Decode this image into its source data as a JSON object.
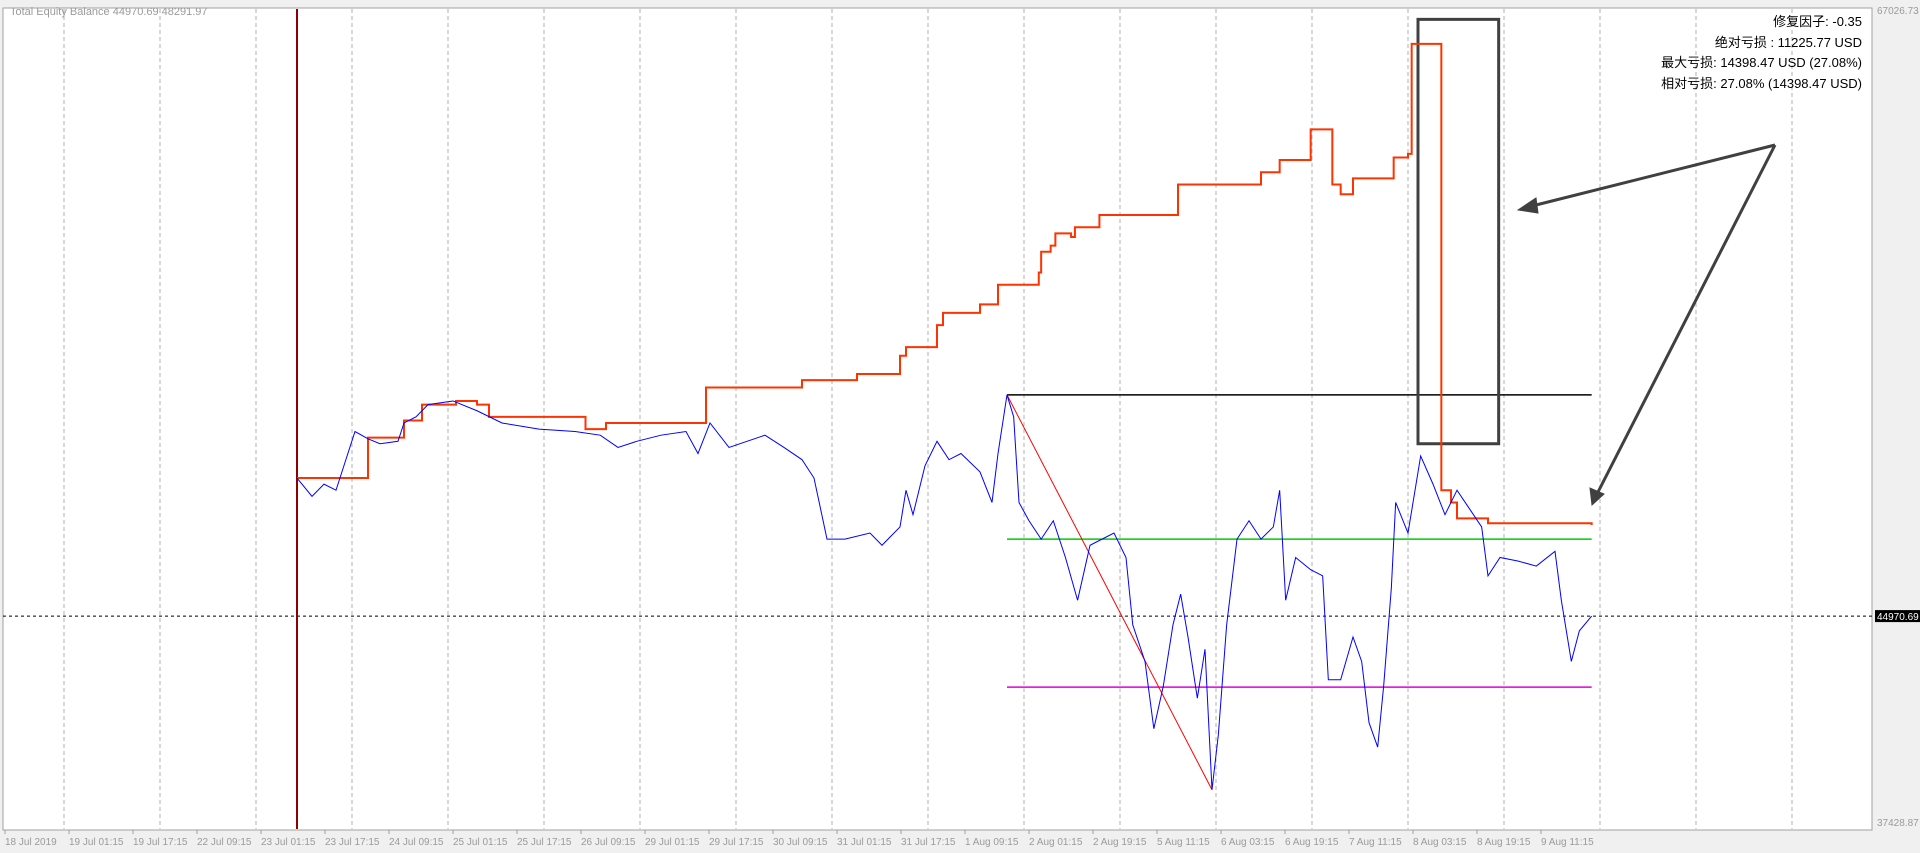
{
  "header": {
    "title": "Total Equity Balance 44970.69 48291.97"
  },
  "info": {
    "lines": [
      "修复因子: -0.35",
      "绝对亏损 : 11225.77 USD",
      "最大亏损: 14398.47 USD (27.08%)",
      "相对亏损: 27.08% (14398.47 USD)"
    ]
  },
  "colors": {
    "equity": "#0000ff",
    "balance": "#ff3300",
    "start_line": "#8b0000",
    "support": "#00cc00",
    "low": "#dd00dd",
    "peak": "#000000",
    "drawdown": "#ff0000",
    "marker": "#404040"
  },
  "chart_data": {
    "type": "line",
    "title": "Total Equity Balance",
    "ylim": [
      37428.87,
      67026.73
    ],
    "y_axis_labels": [
      "67026.73",
      "37428.87"
    ],
    "current_value_label": "44970.69",
    "current_value": 44970.69,
    "grid": "vertical dashed",
    "x_ticks": [
      {
        "label": "18 Jul 2019",
        "time": "2019-07-18 09:15"
      },
      {
        "label": "19 Jul 01:15",
        "time": "2019-07-19 01:15"
      },
      {
        "label": "19 Jul 17:15",
        "time": "2019-07-19 17:15"
      },
      {
        "label": "22 Jul 09:15",
        "time": "2019-07-22 09:15"
      },
      {
        "label": "23 Jul 01:15",
        "time": "2019-07-23 01:15"
      },
      {
        "label": "23 Jul 17:15",
        "time": "2019-07-23 17:15"
      },
      {
        "label": "24 Jul 09:15",
        "time": "2019-07-24 09:15"
      },
      {
        "label": "25 Jul 01:15",
        "time": "2019-07-25 01:15"
      },
      {
        "label": "25 Jul 17:15",
        "time": "2019-07-25 17:15"
      },
      {
        "label": "26 Jul 09:15",
        "time": "2019-07-26 09:15"
      },
      {
        "label": "29 Jul 01:15",
        "time": "2019-07-29 01:15"
      },
      {
        "label": "29 Jul 17:15",
        "time": "2019-07-29 17:15"
      },
      {
        "label": "30 Jul 09:15",
        "time": "2019-07-30 09:15"
      },
      {
        "label": "31 Jul 01:15",
        "time": "2019-07-31 01:15"
      },
      {
        "label": "31 Jul 17:15",
        "time": "2019-07-31 17:15"
      },
      {
        "label": "1 Aug 09:15",
        "time": "2019-08-01 09:15"
      },
      {
        "label": "2 Aug 01:15",
        "time": "2019-08-02 01:15"
      },
      {
        "label": "2 Aug 19:15",
        "time": "2019-08-02 19:15"
      },
      {
        "label": "5 Aug 11:15",
        "time": "2019-08-05 11:15"
      },
      {
        "label": "6 Aug 03:15",
        "time": "2019-08-06 03:15"
      },
      {
        "label": "6 Aug 19:15",
        "time": "2019-08-06 19:15"
      },
      {
        "label": "7 Aug 11:15",
        "time": "2019-08-07 11:15"
      },
      {
        "label": "8 Aug 03:15",
        "time": "2019-08-08 03:15"
      },
      {
        "label": "8 Aug 19:15",
        "time": "2019-08-08 19:15"
      },
      {
        "label": "9 Aug 11:15",
        "time": "2019-08-09 11:15"
      }
    ],
    "series": [
      {
        "name": "Balance",
        "style": "step",
        "points": [
          [
            "2019-07-23 10:15",
            50004
          ],
          [
            "2019-07-24 04:00",
            51475
          ],
          [
            "2019-07-24 13:00",
            52099
          ],
          [
            "2019-07-24 17:30",
            52678
          ],
          [
            "2019-07-25 02:00",
            52812
          ],
          [
            "2019-07-25 07:15",
            52678
          ],
          [
            "2019-07-25 10:15",
            52233
          ],
          [
            "2019-07-26 13:45",
            51787
          ],
          [
            "2019-07-27 10:15",
            52010
          ],
          [
            "2019-07-29 16:30",
            53303
          ],
          [
            "2019-07-30 16:30",
            53571
          ],
          [
            "2019-07-31 06:15",
            53794
          ],
          [
            "2019-07-31 17:00",
            54462
          ],
          [
            "2019-07-31 18:30",
            54775
          ],
          [
            "2019-08-01 02:15",
            55577
          ],
          [
            "2019-08-01 03:45",
            56023
          ],
          [
            "2019-08-01 13:00",
            56335
          ],
          [
            "2019-08-01 17:30",
            57048
          ],
          [
            "2019-08-02 04:00",
            57494
          ],
          [
            "2019-08-02 04:40",
            58252
          ],
          [
            "2019-08-02 07:20",
            58475
          ],
          [
            "2019-08-02 08:40",
            58921
          ],
          [
            "2019-08-02 13:05",
            58787
          ],
          [
            "2019-08-02 14:10",
            59144
          ],
          [
            "2019-08-03 01:40",
            59589
          ],
          [
            "2019-08-05 16:30",
            60704
          ],
          [
            "2019-08-06 13:15",
            61150
          ],
          [
            "2019-08-06 17:55",
            61595
          ],
          [
            "2019-08-07 01:40",
            62710
          ],
          [
            "2019-08-07 07:05",
            60704
          ],
          [
            "2019-08-07 09:10",
            60347
          ],
          [
            "2019-08-07 12:15",
            60927
          ],
          [
            "2019-08-07 22:25",
            61685
          ],
          [
            "2019-08-08 02:00",
            61818
          ],
          [
            "2019-08-08 02:55",
            65830
          ],
          [
            "2019-08-08 10:20",
            49559
          ],
          [
            "2019-08-08 12:45",
            49113
          ],
          [
            "2019-08-08 14:15",
            48533
          ],
          [
            "2019-08-08 22:00",
            48355
          ],
          [
            "2019-08-09 23:55",
            48291.97
          ]
        ]
      },
      {
        "name": "Equity",
        "style": "line",
        "points": [
          [
            "2019-07-23 10:15",
            50004
          ],
          [
            "2019-07-23 14:00",
            49336
          ],
          [
            "2019-07-23 17:00",
            49781
          ],
          [
            "2019-07-23 20:00",
            49559
          ],
          [
            "2019-07-24 00:45",
            51699
          ],
          [
            "2019-07-24 04:00",
            51431
          ],
          [
            "2019-07-24 07:00",
            51253
          ],
          [
            "2019-07-24 11:30",
            51342
          ],
          [
            "2019-07-24 13:00",
            52010
          ],
          [
            "2019-07-24 16:00",
            52233
          ],
          [
            "2019-07-24 19:00",
            52678
          ],
          [
            "2019-07-25 01:15",
            52812
          ],
          [
            "2019-07-25 07:15",
            52456
          ],
          [
            "2019-07-25 13:30",
            52010
          ],
          [
            "2019-07-25 22:45",
            51787
          ],
          [
            "2019-07-26 07:45",
            51699
          ],
          [
            "2019-07-27 04:30",
            51565
          ],
          [
            "2019-07-27 22:15",
            51119
          ],
          [
            "2019-07-28 17:00",
            51342
          ],
          [
            "2019-07-29 05:15",
            51565
          ],
          [
            "2019-07-29 11:30",
            51699
          ],
          [
            "2019-07-29 14:30",
            50896
          ],
          [
            "2019-07-29 17:30",
            52010
          ],
          [
            "2019-07-29 22:15",
            51119
          ],
          [
            "2019-07-30 02:45",
            51342
          ],
          [
            "2019-07-30 07:15",
            51565
          ],
          [
            "2019-07-30 12:00",
            51119
          ],
          [
            "2019-07-30 16:30",
            50673
          ],
          [
            "2019-07-30 19:30",
            50004
          ],
          [
            "2019-07-30 22:45",
            47776
          ],
          [
            "2019-07-31 03:15",
            47776
          ],
          [
            "2019-07-31 09:30",
            47998
          ],
          [
            "2019-07-31 12:30",
            47553
          ],
          [
            "2019-07-31 17:00",
            48221
          ],
          [
            "2019-07-31 18:30",
            49559
          ],
          [
            "2019-07-31 20:15",
            48667
          ],
          [
            "2019-07-31 23:15",
            50450
          ],
          [
            "2019-08-01 02:15",
            51342
          ],
          [
            "2019-08-01 05:15",
            50673
          ],
          [
            "2019-08-01 08:15",
            50896
          ],
          [
            "2019-08-01 13:00",
            50227
          ],
          [
            "2019-08-01 16:00",
            49113
          ],
          [
            "2019-08-01 17:30",
            50896
          ],
          [
            "2019-08-01 19:45",
            53036
          ],
          [
            "2019-08-01 21:25",
            52233
          ],
          [
            "2019-08-01 22:45",
            49113
          ],
          [
            "2019-08-02 01:15",
            48445
          ],
          [
            "2019-08-02 04:40",
            47776
          ],
          [
            "2019-08-02 08:05",
            48445
          ],
          [
            "2019-08-02 11:30",
            47107
          ],
          [
            "2019-08-02 14:55",
            45547
          ],
          [
            "2019-08-02 18:25",
            47553
          ],
          [
            "2019-08-03 04:15",
            47776
          ],
          [
            "2019-08-03 16:15",
            47998
          ],
          [
            "2019-08-04 04:15",
            47107
          ],
          [
            "2019-08-04 11:00",
            44655
          ],
          [
            "2019-08-04 23:15",
            43318
          ],
          [
            "2019-08-05 08:05",
            40866
          ],
          [
            "2019-08-05 12:50",
            42426
          ],
          [
            "2019-08-05 15:15",
            44655
          ],
          [
            "2019-08-05 17:10",
            45770
          ],
          [
            "2019-08-05 19:00",
            44209
          ],
          [
            "2019-08-05 21:20",
            41980
          ],
          [
            "2019-08-05 23:15",
            43763
          ],
          [
            "2019-08-06 01:00",
            38640
          ],
          [
            "2019-08-06 02:35",
            40643
          ],
          [
            "2019-08-06 04:40",
            44655
          ],
          [
            "2019-08-06 07:15",
            47776
          ],
          [
            "2019-08-06 10:15",
            48445
          ],
          [
            "2019-08-06 13:15",
            47776
          ],
          [
            "2019-08-06 16:20",
            48221
          ],
          [
            "2019-08-06 17:55",
            49559
          ],
          [
            "2019-08-06 19:25",
            45547
          ],
          [
            "2019-08-06 21:55",
            47107
          ],
          [
            "2019-08-07 01:40",
            46661
          ],
          [
            "2019-08-07 04:40",
            46438
          ],
          [
            "2019-08-07 06:05",
            42649
          ],
          [
            "2019-08-07 09:10",
            42649
          ],
          [
            "2019-08-07 12:15",
            44209
          ],
          [
            "2019-08-07 14:25",
            43318
          ],
          [
            "2019-08-07 16:15",
            41089
          ],
          [
            "2019-08-07 18:25",
            40197
          ],
          [
            "2019-08-07 19:55",
            42426
          ],
          [
            "2019-08-07 21:50",
            45993
          ],
          [
            "2019-08-07 22:55",
            49113
          ],
          [
            "2019-08-08 02:00",
            47998
          ],
          [
            "2019-08-08 05:10",
            50807
          ],
          [
            "2019-08-08 08:15",
            49781
          ],
          [
            "2019-08-08 11:15",
            48667
          ],
          [
            "2019-08-08 14:15",
            49559
          ],
          [
            "2019-08-08 17:20",
            48891
          ],
          [
            "2019-08-08 20:25",
            48221
          ],
          [
            "2019-08-08 22:00",
            46438
          ],
          [
            "2019-08-09 01:00",
            47107
          ],
          [
            "2019-08-09 05:35",
            46973
          ],
          [
            "2019-08-09 10:05",
            46795
          ],
          [
            "2019-08-09 14:45",
            47330
          ],
          [
            "2019-08-09 16:20",
            45547
          ],
          [
            "2019-08-09 18:50",
            43318
          ],
          [
            "2019-08-09 20:50",
            44432
          ],
          [
            "2019-08-09 23:55",
            44970.69
          ]
        ]
      }
    ],
    "annotations": {
      "start_vertical": "2019-07-23 10:15",
      "peak_hline": {
        "from": "2019-08-01 19:45",
        "to": "2019-08-09 23:55",
        "value": 53036
      },
      "green_hline": {
        "from": "2019-08-01 19:45",
        "to": "2019-08-09 23:55",
        "value": 47775
      },
      "magenta_hline": {
        "from": "2019-08-01 19:45",
        "to": "2019-08-09 23:55",
        "value": 42381
      },
      "drawdown_trendline": {
        "from": [
          "2019-08-01 19:45",
          53036
        ],
        "to": [
          "2019-08-06 01:00",
          38640
        ]
      },
      "rectangle": {
        "from": [
          "2019-08-08 04:30",
          66722
        ],
        "to": [
          "2019-08-09 00:40",
          51253
        ]
      }
    }
  }
}
